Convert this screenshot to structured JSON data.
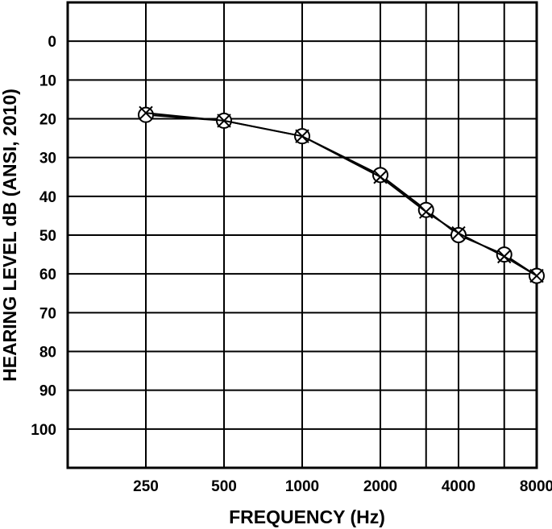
{
  "chart_data": {
    "type": "line",
    "title": "",
    "xlabel": "FREQUENCY (Hz)",
    "ylabel": "HEARING LEVEL dB (ANSI, 2010)",
    "x_scale": "log2",
    "y_inverted": true,
    "ylim": [
      -10,
      110
    ],
    "y_ticks": [
      0,
      10,
      20,
      30,
      40,
      50,
      60,
      70,
      80,
      90,
      100
    ],
    "x_gridlines": [
      250,
      500,
      1000,
      2000,
      3000,
      4000,
      6000,
      8000
    ],
    "x_tick_labels": [
      {
        "value": 250,
        "label": "250"
      },
      {
        "value": 500,
        "label": "500"
      },
      {
        "value": 1000,
        "label": "1000"
      },
      {
        "value": 2000,
        "label": "2000"
      },
      {
        "value": 4000,
        "label": "4000"
      },
      {
        "value": 8000,
        "label": "8000"
      }
    ],
    "grid": true,
    "series": [
      {
        "marker": "circle",
        "color": "#000000",
        "x": [
          250,
          500,
          1000,
          2000,
          3000,
          4000,
          6000,
          8000
        ],
        "y": [
          19,
          20.5,
          24.5,
          34.5,
          43.5,
          50,
          55,
          60.5
        ]
      },
      {
        "marker": "x",
        "color": "#000000",
        "x": [
          250,
          500,
          1000,
          2000,
          3000,
          4000,
          6000,
          8000
        ],
        "y": [
          18.5,
          20.5,
          24.5,
          35,
          44,
          49.5,
          55.5,
          60.5
        ]
      }
    ]
  }
}
